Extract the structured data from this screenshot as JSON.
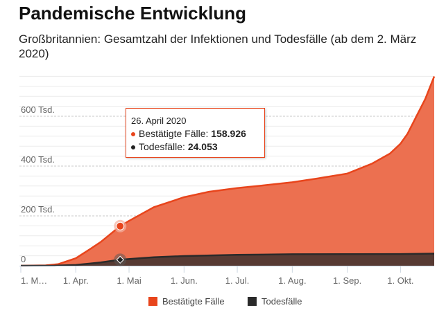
{
  "title": "Pandemische Entwicklung",
  "subtitle": "Großbritannien: Gesamtzahl der Infektionen und Todesfälle (ab dem 2. März 2020)",
  "tooltip": {
    "date": "26. April 2020",
    "cases_label": "Bestätigte Fälle: ",
    "cases_value": "158.926",
    "deaths_label": "Todesfälle: ",
    "deaths_value": "24.053"
  },
  "chart_data": {
    "type": "area",
    "ylim": [
      0,
      760000
    ],
    "y_ticks": [
      {
        "v": 0,
        "label": "0"
      },
      {
        "v": 200000,
        "label": "200 Tsd."
      },
      {
        "v": 400000,
        "label": "400 Tsd."
      },
      {
        "v": 600000,
        "label": "600 Tsd."
      }
    ],
    "x_ticks": [
      {
        "date": "2020-03-01",
        "label": "1. M…"
      },
      {
        "date": "2020-04-01",
        "label": "1. Apr."
      },
      {
        "date": "2020-05-01",
        "label": "1. Mai"
      },
      {
        "date": "2020-06-01",
        "label": "1. Jun."
      },
      {
        "date": "2020-07-01",
        "label": "1. Jul."
      },
      {
        "date": "2020-08-01",
        "label": "1. Aug."
      },
      {
        "date": "2020-09-01",
        "label": "1. Sep."
      },
      {
        "date": "2020-10-01",
        "label": "1. Okt."
      }
    ],
    "xlim": [
      "2020-03-01",
      "2020-10-20"
    ],
    "grid": true,
    "legend": "bottom",
    "series": [
      {
        "name": "Bestätigte Fälle",
        "color": "#e8451c",
        "fill": "#ec7050",
        "points": [
          [
            "2020-03-01",
            0
          ],
          [
            "2020-03-15",
            1400
          ],
          [
            "2020-03-22",
            6000
          ],
          [
            "2020-04-01",
            30000
          ],
          [
            "2020-04-08",
            62000
          ],
          [
            "2020-04-15",
            95000
          ],
          [
            "2020-04-26",
            158926
          ],
          [
            "2020-05-01",
            180000
          ],
          [
            "2020-05-15",
            235000
          ],
          [
            "2020-06-01",
            275000
          ],
          [
            "2020-06-15",
            297000
          ],
          [
            "2020-07-01",
            312000
          ],
          [
            "2020-07-15",
            322000
          ],
          [
            "2020-08-01",
            335000
          ],
          [
            "2020-08-15",
            350000
          ],
          [
            "2020-09-01",
            370000
          ],
          [
            "2020-09-15",
            410000
          ],
          [
            "2020-09-25",
            450000
          ],
          [
            "2020-10-01",
            490000
          ],
          [
            "2020-10-05",
            530000
          ],
          [
            "2020-10-10",
            600000
          ],
          [
            "2020-10-15",
            670000
          ],
          [
            "2020-10-20",
            760000
          ]
        ]
      },
      {
        "name": "Todesfälle",
        "color": "#2a2a2a",
        "fill": "#573a33",
        "points": [
          [
            "2020-03-01",
            0
          ],
          [
            "2020-03-20",
            200
          ],
          [
            "2020-04-01",
            3000
          ],
          [
            "2020-04-15",
            13000
          ],
          [
            "2020-04-26",
            24053
          ],
          [
            "2020-05-15",
            34000
          ],
          [
            "2020-06-01",
            39000
          ],
          [
            "2020-07-01",
            43500
          ],
          [
            "2020-08-01",
            46000
          ],
          [
            "2020-09-01",
            46500
          ],
          [
            "2020-10-01",
            47000
          ],
          [
            "2020-10-20",
            48500
          ]
        ]
      }
    ],
    "highlight_date": "2020-04-26"
  }
}
